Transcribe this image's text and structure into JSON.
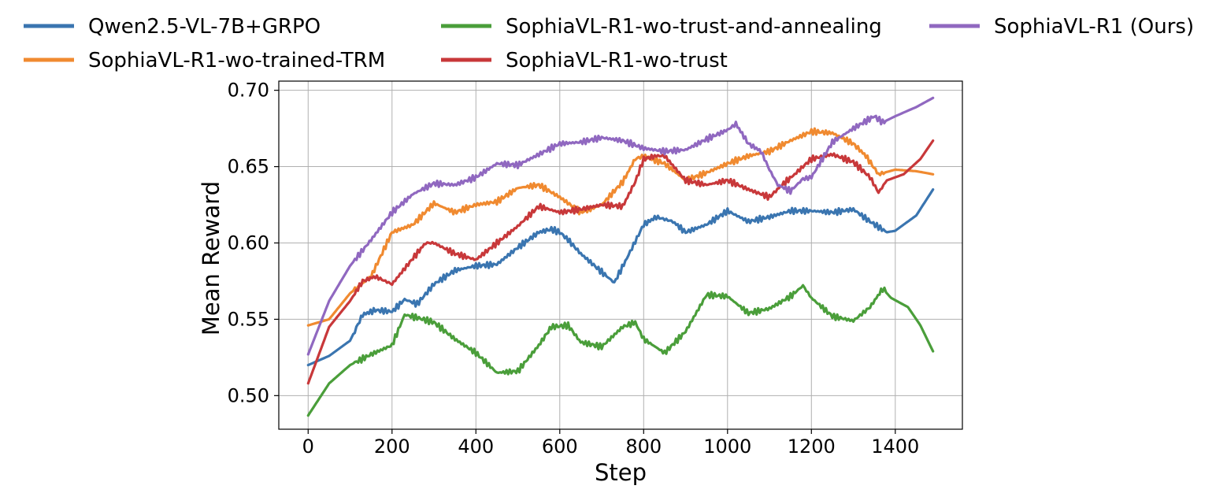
{
  "chart_data": {
    "type": "line",
    "xlabel": "Step",
    "ylabel": "Mean Reward",
    "xlim": [
      -70,
      1560
    ],
    "ylim": [
      0.478,
      0.706
    ],
    "xticks": [
      "0",
      "200",
      "400",
      "600",
      "800",
      "1000",
      "1200",
      "1400"
    ],
    "xtick_values": [
      0,
      200,
      400,
      600,
      800,
      1000,
      1200,
      1400
    ],
    "yticks": [
      "0.50",
      "0.55",
      "0.60",
      "0.65",
      "0.70"
    ],
    "ytick_values": [
      0.5,
      0.55,
      0.6,
      0.65,
      0.7
    ],
    "grid": true,
    "legend_position": "top",
    "series": [
      {
        "name": "Qwen2.5-VL-7B+GRPO",
        "color": "#3a75b0",
        "x": [
          0,
          50,
          100,
          130,
          160,
          200,
          230,
          260,
          300,
          350,
          400,
          450,
          500,
          550,
          580,
          600,
          620,
          650,
          700,
          730,
          760,
          800,
          830,
          870,
          900,
          950,
          1000,
          1050,
          1100,
          1150,
          1200,
          1250,
          1300,
          1340,
          1380,
          1400,
          1450,
          1490
        ],
        "values": [
          0.52,
          0.526,
          0.536,
          0.553,
          0.556,
          0.555,
          0.563,
          0.56,
          0.573,
          0.582,
          0.585,
          0.586,
          0.597,
          0.607,
          0.609,
          0.607,
          0.602,
          0.593,
          0.581,
          0.574,
          0.59,
          0.612,
          0.617,
          0.614,
          0.607,
          0.612,
          0.621,
          0.614,
          0.617,
          0.621,
          0.621,
          0.62,
          0.622,
          0.614,
          0.607,
          0.608,
          0.618,
          0.635
        ]
      },
      {
        "name": "SophiaVL-R1-wo-trained-TRM",
        "color": "#f08a30",
        "x": [
          0,
          50,
          100,
          150,
          200,
          250,
          300,
          350,
          400,
          450,
          500,
          550,
          600,
          650,
          700,
          750,
          780,
          800,
          850,
          900,
          950,
          1000,
          1050,
          1100,
          1150,
          1200,
          1250,
          1300,
          1330,
          1360,
          1400,
          1450,
          1490
        ],
        "values": [
          0.546,
          0.55,
          0.567,
          0.578,
          0.607,
          0.612,
          0.626,
          0.62,
          0.625,
          0.627,
          0.636,
          0.638,
          0.63,
          0.62,
          0.625,
          0.64,
          0.655,
          0.657,
          0.652,
          0.641,
          0.646,
          0.652,
          0.657,
          0.66,
          0.667,
          0.673,
          0.672,
          0.665,
          0.657,
          0.645,
          0.648,
          0.647,
          0.645
        ]
      },
      {
        "name": "SophiaVL-R1-wo-trust-and-annealing",
        "color": "#4a9e3a",
        "x": [
          0,
          50,
          100,
          150,
          200,
          230,
          260,
          300,
          350,
          400,
          450,
          500,
          550,
          580,
          620,
          650,
          700,
          750,
          780,
          800,
          850,
          900,
          950,
          1000,
          1050,
          1100,
          1150,
          1180,
          1200,
          1250,
          1300,
          1340,
          1370,
          1390,
          1430,
          1460,
          1490
        ],
        "values": [
          0.487,
          0.508,
          0.52,
          0.527,
          0.533,
          0.553,
          0.551,
          0.548,
          0.537,
          0.528,
          0.515,
          0.516,
          0.533,
          0.545,
          0.546,
          0.535,
          0.532,
          0.545,
          0.548,
          0.537,
          0.528,
          0.542,
          0.566,
          0.565,
          0.554,
          0.557,
          0.565,
          0.572,
          0.564,
          0.552,
          0.549,
          0.558,
          0.57,
          0.564,
          0.558,
          0.546,
          0.529
        ]
      },
      {
        "name": "SophiaVL-R1-wo-trust",
        "color": "#c8383a",
        "x": [
          0,
          50,
          100,
          130,
          160,
          200,
          250,
          280,
          300,
          350,
          400,
          450,
          500,
          550,
          600,
          650,
          700,
          750,
          780,
          800,
          830,
          850,
          900,
          950,
          1000,
          1050,
          1100,
          1130,
          1160,
          1200,
          1250,
          1300,
          1340,
          1360,
          1380,
          1420,
          1460,
          1490
        ],
        "values": [
          0.508,
          0.545,
          0.562,
          0.575,
          0.578,
          0.573,
          0.59,
          0.6,
          0.6,
          0.593,
          0.589,
          0.6,
          0.611,
          0.624,
          0.62,
          0.622,
          0.625,
          0.624,
          0.64,
          0.655,
          0.657,
          0.657,
          0.641,
          0.638,
          0.641,
          0.635,
          0.63,
          0.638,
          0.645,
          0.655,
          0.658,
          0.653,
          0.643,
          0.633,
          0.641,
          0.645,
          0.655,
          0.667
        ]
      },
      {
        "name": "SophiaVL-R1 (Ours)",
        "color": "#9068c0",
        "x": [
          0,
          50,
          100,
          150,
          200,
          250,
          300,
          350,
          400,
          450,
          500,
          550,
          600,
          650,
          700,
          750,
          800,
          850,
          900,
          950,
          1000,
          1020,
          1050,
          1080,
          1100,
          1120,
          1150,
          1180,
          1200,
          1250,
          1300,
          1350,
          1370,
          1400,
          1450,
          1490
        ],
        "values": [
          0.527,
          0.562,
          0.585,
          0.602,
          0.62,
          0.632,
          0.639,
          0.638,
          0.643,
          0.652,
          0.651,
          0.658,
          0.665,
          0.666,
          0.669,
          0.667,
          0.662,
          0.66,
          0.661,
          0.668,
          0.674,
          0.678,
          0.665,
          0.66,
          0.648,
          0.638,
          0.634,
          0.642,
          0.643,
          0.666,
          0.675,
          0.683,
          0.679,
          0.683,
          0.689,
          0.695
        ]
      }
    ]
  }
}
